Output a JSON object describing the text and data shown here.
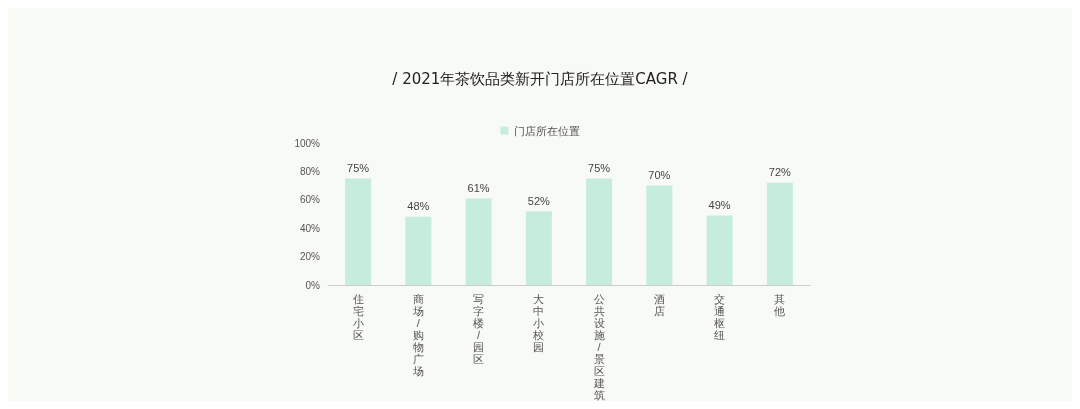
{
  "chart_data": {
    "type": "bar",
    "title": "/ 2021年茶饮品类新开门店所在位置CAGR /",
    "categories": [
      "住宅小区",
      "商场/购物广场",
      "写字楼/园区",
      "大中小校园",
      "公共设施/景区建筑",
      "酒店",
      "交通枢纽",
      "其他"
    ],
    "series": [
      {
        "name": "门店所在位置",
        "color": "#c6ecdc",
        "values": [
          75,
          48,
          61,
          52,
          75,
          70,
          49,
          72
        ],
        "value_labels": [
          "75%",
          "48%",
          "61%",
          "52%",
          "75%",
          "70%",
          "49%",
          "72%"
        ]
      }
    ],
    "ylim": [
      0,
      100
    ],
    "yticks": [
      {
        "value": 0,
        "label": "0%"
      },
      {
        "value": 20,
        "label": "20%"
      },
      {
        "value": 40,
        "label": "40%"
      },
      {
        "value": 60,
        "label": "60%"
      },
      {
        "value": 80,
        "label": "80%"
      },
      {
        "value": 100,
        "label": "100%"
      }
    ],
    "grid": false,
    "legend": "top"
  }
}
